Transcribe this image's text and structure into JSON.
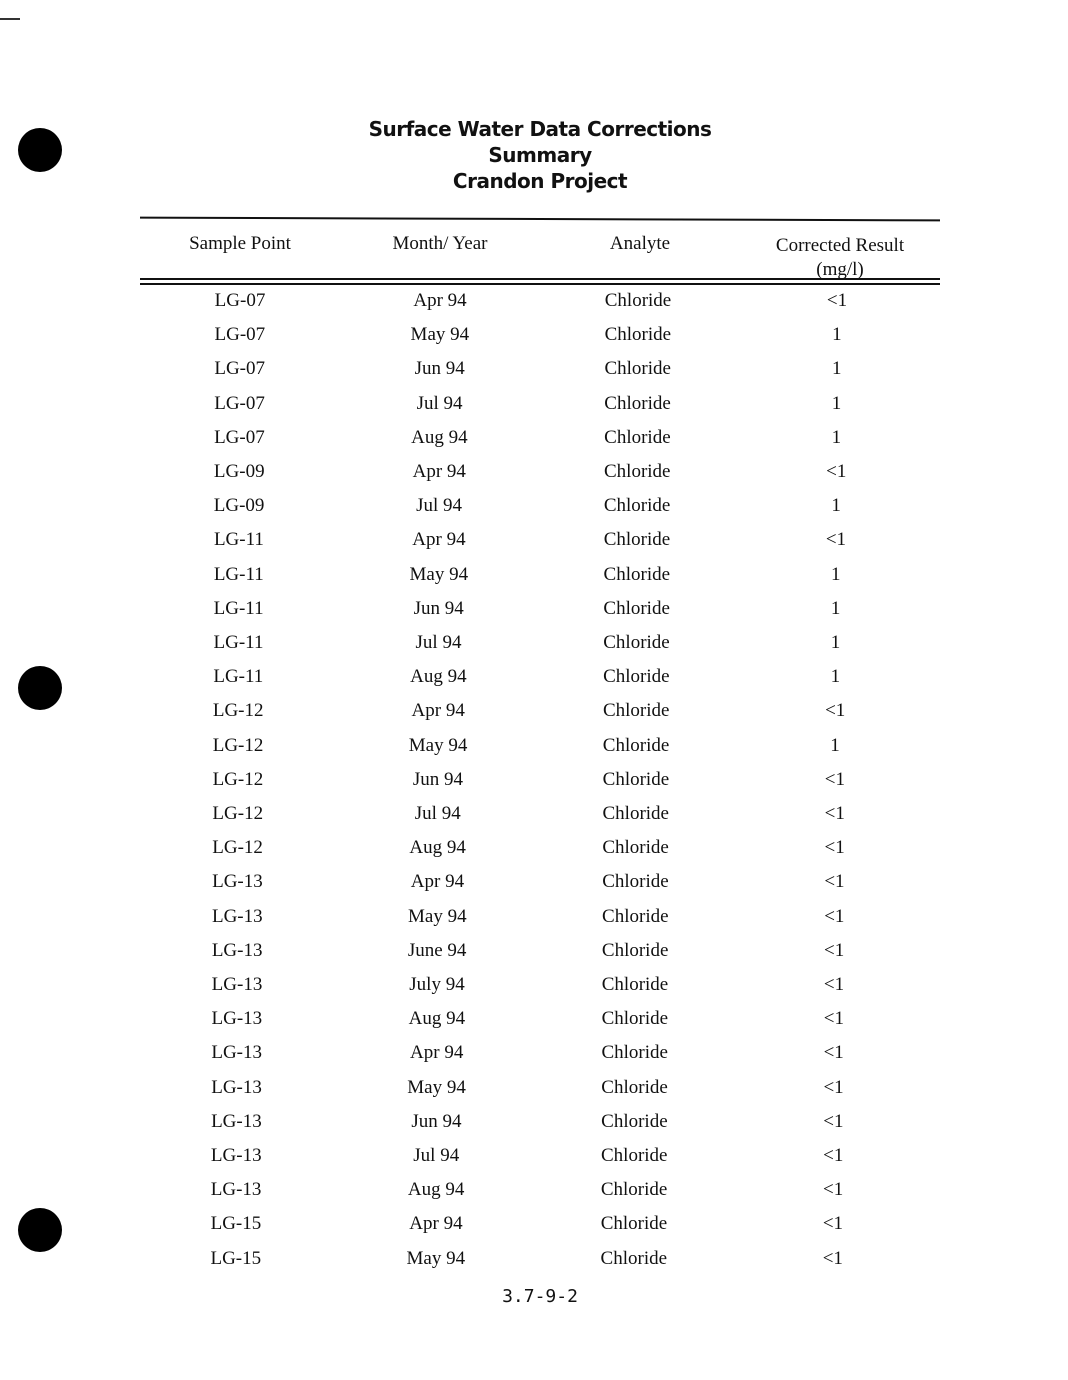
{
  "title": [
    "Surface Water Data Corrections",
    "Summary",
    "Crandon Project"
  ],
  "columns": [
    "Sample Point",
    "Month/ Year",
    "Analyte",
    "Corrected Result",
    "(mg/l)"
  ],
  "rows": [
    [
      "LG-07",
      "Apr 94",
      "Chloride",
      "<1"
    ],
    [
      "LG-07",
      "May 94",
      "Chloride",
      "1"
    ],
    [
      "LG-07",
      "Jun 94",
      "Chloride",
      "1"
    ],
    [
      "LG-07",
      "Jul 94",
      "Chloride",
      "1"
    ],
    [
      "LG-07",
      "Aug 94",
      "Chloride",
      "1"
    ],
    [
      "LG-09",
      "Apr 94",
      "Chloride",
      "<1"
    ],
    [
      "LG-09",
      "Jul 94",
      "Chloride",
      "1"
    ],
    [
      "LG-11",
      "Apr 94",
      "Chloride",
      "<1"
    ],
    [
      "LG-11",
      "May 94",
      "Chloride",
      "1"
    ],
    [
      "LG-11",
      "Jun 94",
      "Chloride",
      "1"
    ],
    [
      "LG-11",
      "Jul 94",
      "Chloride",
      "1"
    ],
    [
      "LG-11",
      "Aug 94",
      "Chloride",
      "1"
    ],
    [
      "LG-12",
      "Apr 94",
      "Chloride",
      "<1"
    ],
    [
      "LG-12",
      "May 94",
      "Chloride",
      "1"
    ],
    [
      "LG-12",
      "Jun 94",
      "Chloride",
      "<1"
    ],
    [
      "LG-12",
      "Jul 94",
      "Chloride",
      "<1"
    ],
    [
      "LG-12",
      "Aug 94",
      "Chloride",
      "<1"
    ],
    [
      "LG-13",
      "Apr 94",
      "Chloride",
      "<1"
    ],
    [
      "LG-13",
      "May 94",
      "Chloride",
      "<1"
    ],
    [
      "LG-13",
      "June 94",
      "Chloride",
      "<1"
    ],
    [
      "LG-13",
      "July 94",
      "Chloride",
      "<1"
    ],
    [
      "LG-13",
      "Aug 94",
      "Chloride",
      "<1"
    ],
    [
      "LG-13",
      "Apr 94",
      "Chloride",
      "<1"
    ],
    [
      "LG-13",
      "May 94",
      "Chloride",
      "<1"
    ],
    [
      "LG-13",
      "Jun 94",
      "Chloride",
      "<1"
    ],
    [
      "LG-13",
      "Jul 94",
      "Chloride",
      "<1"
    ],
    [
      "LG-13",
      "Aug 94",
      "Chloride",
      "<1"
    ],
    [
      "LG-15",
      "Apr 94",
      "Chloride",
      "<1"
    ],
    [
      "LG-15",
      "May 94",
      "Chloride",
      "<1"
    ]
  ],
  "page_number": "3.7-9-2"
}
